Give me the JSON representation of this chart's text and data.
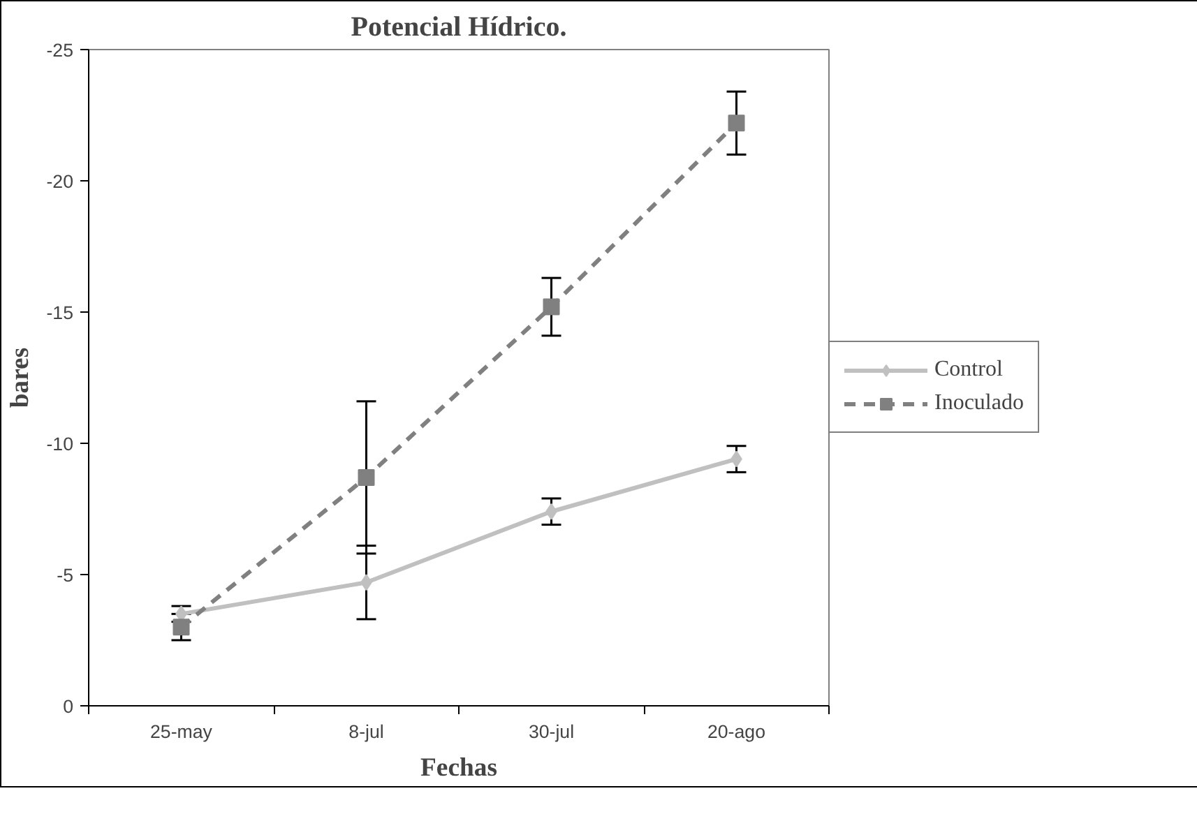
{
  "chart_data": {
    "type": "line",
    "title": "Potencial Hídrico.",
    "xlabel": "Fechas",
    "ylabel": "bares",
    "categories": [
      "25-may",
      "8-jul",
      "30-jul",
      "20-ago"
    ],
    "series": [
      {
        "name": "Control",
        "color": "#c0c0c0",
        "values": [
          -3.5,
          -4.7,
          -7.4,
          -9.4
        ],
        "errors": [
          0.3,
          1.4,
          0.5,
          0.5
        ],
        "marker": "diamond",
        "line_style": "solid"
      },
      {
        "name": "Inoculado",
        "color": "#808080",
        "values": [
          -3.0,
          -8.7,
          -15.2,
          -22.2
        ],
        "errors": [
          0.5,
          2.9,
          1.1,
          1.2
        ],
        "marker": "square",
        "line_style": "dashed"
      }
    ],
    "ylim": [
      0,
      -25
    ],
    "yticks": [
      0,
      -5,
      -10,
      -15,
      -20,
      -25
    ],
    "grid": false,
    "legend": "right"
  }
}
